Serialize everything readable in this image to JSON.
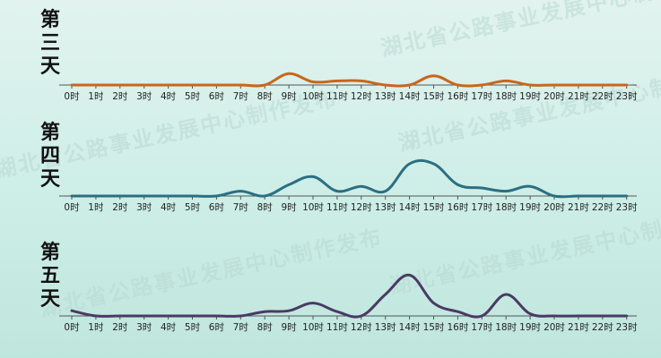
{
  "watermark": "湖北省公路事业发展中心制作发布",
  "chart_data": [
    {
      "type": "line",
      "day_label": "第三天",
      "color": "#c8671c",
      "categories": [
        "0时",
        "1时",
        "2时",
        "3时",
        "4时",
        "5时",
        "6时",
        "7时",
        "8时",
        "9时",
        "10时",
        "11时",
        "12时",
        "13时",
        "14时",
        "15时",
        "16时",
        "17时",
        "18时",
        "19时",
        "20时",
        "21时",
        "22时",
        "23时"
      ],
      "values": [
        0,
        0,
        0,
        0,
        0,
        0,
        0,
        0,
        0,
        0.55,
        0.15,
        0.2,
        0.2,
        0,
        0,
        0.45,
        0,
        0,
        0.2,
        0,
        0,
        0,
        0,
        0
      ]
    },
    {
      "type": "line",
      "day_label": "第四天",
      "color": "#2b6f82",
      "categories": [
        "0时",
        "1时",
        "2时",
        "3时",
        "4时",
        "5时",
        "6时",
        "7时",
        "8时",
        "9时",
        "10时",
        "11时",
        "12时",
        "13时",
        "14时",
        "15时",
        "16时",
        "17时",
        "18时",
        "19时",
        "20时",
        "21时",
        "22时",
        "23时"
      ],
      "values": [
        0,
        0,
        0,
        0,
        0,
        0,
        0,
        0.15,
        0,
        0.35,
        0.6,
        0.15,
        0.3,
        0.15,
        1,
        1,
        0.35,
        0.25,
        0.15,
        0.3,
        0,
        0,
        0,
        0
      ]
    },
    {
      "type": "line",
      "day_label": "第五天",
      "color": "#4a3a64",
      "categories": [
        "0时",
        "1时",
        "2时",
        "3时",
        "4时",
        "5时",
        "6时",
        "7时",
        "8时",
        "9时",
        "10时",
        "11时",
        "12时",
        "13时",
        "14时",
        "15时",
        "16时",
        "17时",
        "18时",
        "19时",
        "20时",
        "21时",
        "22时",
        "23时"
      ],
      "values": [
        0.12,
        0,
        0,
        0,
        0,
        0,
        0,
        0,
        0.1,
        0.12,
        0.3,
        0.1,
        0,
        0.5,
        0.95,
        0.3,
        0.1,
        0,
        0.5,
        0.05,
        0,
        0,
        0,
        0
      ]
    }
  ]
}
